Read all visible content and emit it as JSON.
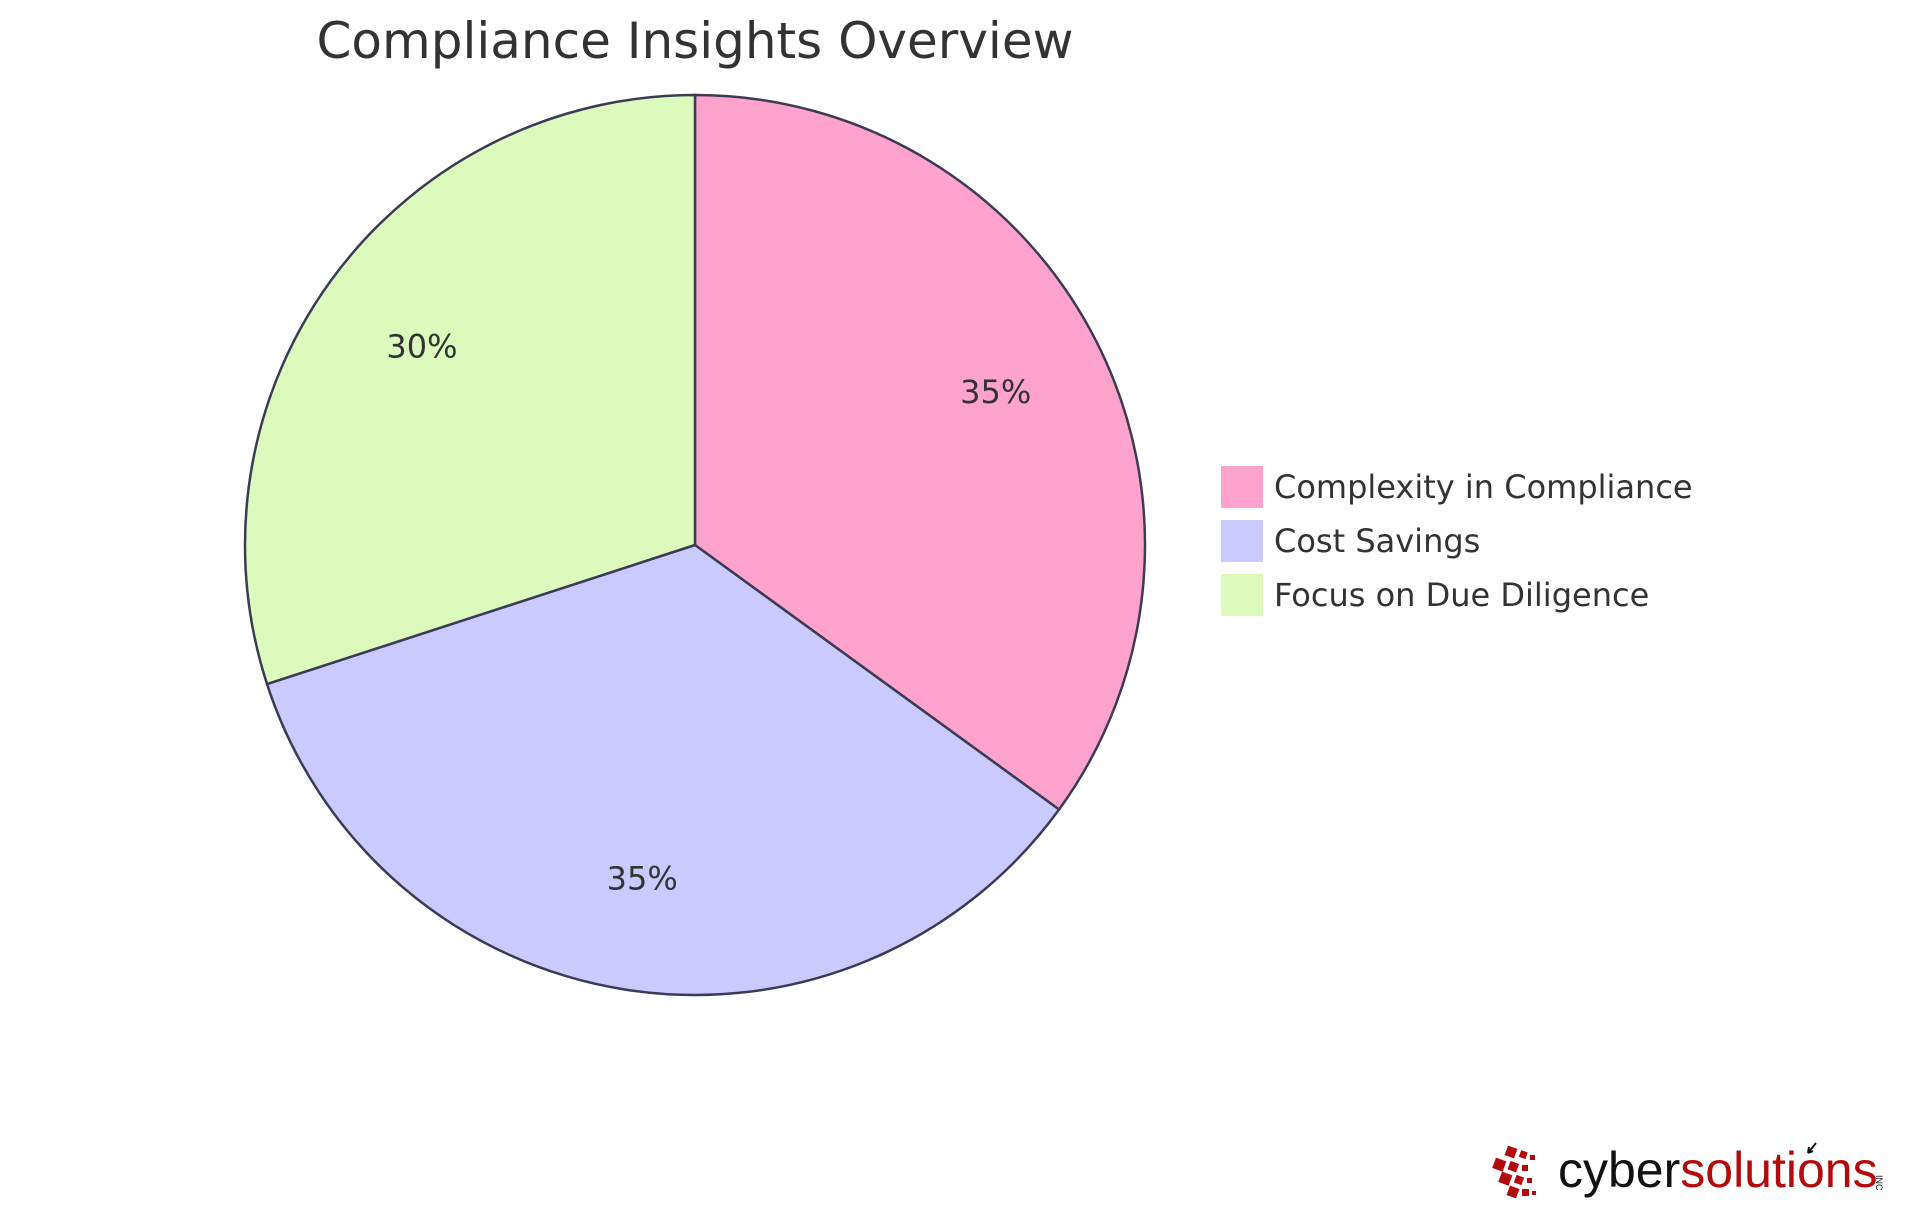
{
  "chart_data": {
    "type": "pie",
    "title": "Compliance Insights Overview",
    "categories": [
      "Complexity in Compliance",
      "Cost Savings",
      "Focus on Due Diligence"
    ],
    "values": [
      35,
      35,
      30
    ],
    "labels": [
      "35%",
      "35%",
      "30%"
    ],
    "colors": [
      "#ffa3cc",
      "#cacafe",
      "#dbfabc"
    ],
    "legend_position": "right",
    "stroke_color": "#3b3b55"
  },
  "branding": {
    "logo_part1": "cyber",
    "logo_part2": "solutions",
    "logo_suffix": "INC",
    "logo_colors": {
      "dark": "#111111",
      "red": "#b30b0b"
    }
  }
}
